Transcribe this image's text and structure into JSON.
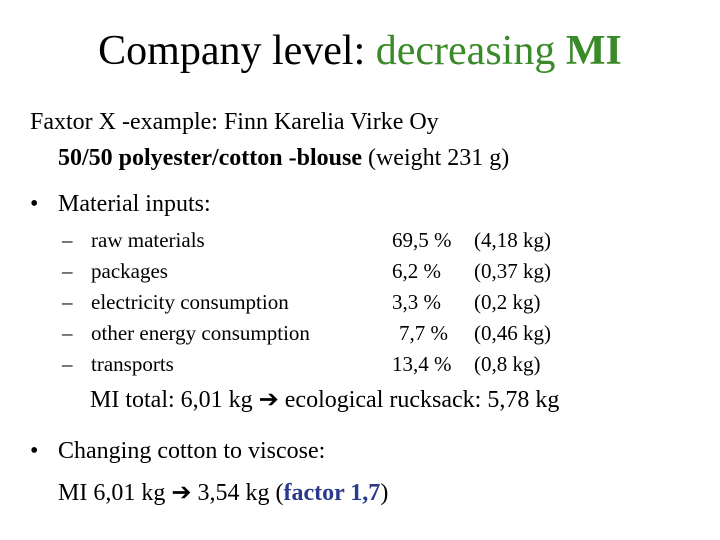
{
  "title": {
    "prefix": "Company level: ",
    "green": "decreasing ",
    "green_bold": "MI"
  },
  "intro": {
    "line1": "Faxtor X -example: Finn Karelia Virke Oy",
    "line2_bold": "50/50 polyester/cotton -blouse",
    "line2_rest": " (weight 231 g)"
  },
  "bullet_glyph": "•",
  "material": {
    "heading": "Material inputs:",
    "dash": "–",
    "rows": [
      {
        "label": "raw materials",
        "percent": "69,5 %",
        "kg": "(4,18 kg)"
      },
      {
        "label": "packages",
        "percent": "6,2 %",
        "kg": "(0,37 kg)"
      },
      {
        "label": "electricity consumption",
        "percent": "3,3 %",
        "kg": "(0,2 kg)"
      },
      {
        "label": "other energy consumption",
        "percent": "7,7 %",
        "kg": "(0,46 kg)"
      },
      {
        "label": "transports",
        "percent": "13,4 %",
        "kg": "(0,8 kg)"
      }
    ]
  },
  "mi_total": {
    "before": "MI total: 6,01 kg",
    "arrow": "➔",
    "after": "ecological rucksack: 5,78 kg"
  },
  "change": {
    "heading": "Changing cotton to viscose:",
    "line_before": "MI 6,01 kg",
    "arrow": "➔",
    "line_mid": "3,54 kg (",
    "factor": "factor 1,7",
    "line_end": ")"
  },
  "colors": {
    "title_green": "#3a8a2a",
    "factor_blue": "#2a3a8c"
  }
}
